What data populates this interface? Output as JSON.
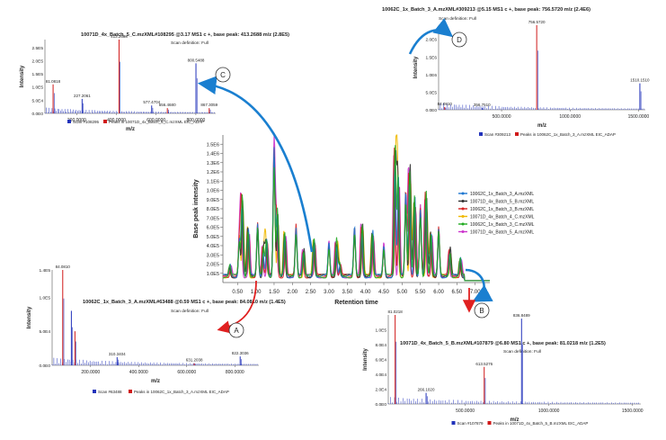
{
  "chart_data": {
    "type": "composite",
    "main": {
      "type": "line",
      "xlabel": "Retention time",
      "ylabel": "Base peak intensity",
      "xlim": [
        0.1,
        7.4
      ],
      "ylim": [
        0,
        1600000.0
      ],
      "xticks": [
        "0.50",
        "1.00",
        "1.50",
        "2.00",
        "2.50",
        "3.00",
        "3.50",
        "4.00",
        "4.50",
        "5.00",
        "5.50",
        "6.00",
        "6.50",
        "7.00"
      ],
      "yticks": [
        "1.0E5",
        "2.0E5",
        "3.0E5",
        "4.0E5",
        "5.0E5",
        "6.0E5",
        "7.0E5",
        "8.0E5",
        "9.0E5",
        "1.0E6",
        "1.1E6",
        "1.2E6",
        "1.3E6",
        "1.4E6",
        "1.5E6"
      ],
      "legend": [
        {
          "name": "10062C_1x_Batch_3_A.mzXML",
          "color": "#1f77d0"
        },
        {
          "name": "10071D_4x_Batch_5_B.mzXML",
          "color": "#303030"
        },
        {
          "name": "10062C_1x_Batch_3_B.mzXML",
          "color": "#d62020"
        },
        {
          "name": "10071D_4x_Batch_4_C.mzXML",
          "color": "#f0b800"
        },
        {
          "name": "10062C_1x_Batch_3_C.mzXML",
          "color": "#22aa22"
        },
        {
          "name": "10071D_4x_Batch_5_A.mzXML",
          "color": "#cc33cc"
        }
      ],
      "series_peaks": [
        [
          0.3,
          0.12
        ],
        [
          0.55,
          0.45
        ],
        [
          0.62,
          0.9
        ],
        [
          0.8,
          0.55
        ],
        [
          1.05,
          0.6
        ],
        [
          1.2,
          0.35
        ],
        [
          1.3,
          0.42
        ],
        [
          1.5,
          1.5
        ],
        [
          1.58,
          0.75
        ],
        [
          1.8,
          0.5
        ],
        [
          2.1,
          0.55
        ],
        [
          2.3,
          0.3
        ],
        [
          2.6,
          0.42
        ],
        [
          3.0,
          0.38
        ],
        [
          3.2,
          0.4
        ],
        [
          3.3,
          0.15
        ],
        [
          3.7,
          0.55
        ],
        [
          3.9,
          0.6
        ],
        [
          4.2,
          0.5
        ],
        [
          4.5,
          0.35
        ],
        [
          4.8,
          1.45
        ],
        [
          4.9,
          1.2
        ],
        [
          5.1,
          0.95
        ],
        [
          5.2,
          1.25
        ],
        [
          5.35,
          0.9
        ],
        [
          5.5,
          0.8
        ],
        [
          5.65,
          0.95
        ],
        [
          5.8,
          0.5
        ],
        [
          6.0,
          0.55
        ],
        [
          6.3,
          0.3
        ],
        [
          6.6,
          0.2
        ]
      ]
    },
    "insets": [
      {
        "id": "A",
        "label": "A",
        "title": "10062C_1x_Batch_3_A.mzXML#63488 @0.59 MS1 c +, base peak: 84.0810 m/z (1.4E5)",
        "subtitle": "Scan definition: Full",
        "xlabel": "m/z",
        "ylabel": "Intensity",
        "xticks": [
          "200.0000",
          "400.0000",
          "600.0000",
          "800.0000"
        ],
        "yticks": [
          "0.0E0",
          "5.0E4",
          "1.0E5",
          "1.4E5"
        ],
        "xlim": [
          40,
          900
        ],
        "peaks": [
          [
            84.081,
            140000.0
          ],
          [
            120,
            80000.0
          ],
          [
            135,
            50000.0
          ],
          [
            310.3404,
            12000.0
          ],
          [
            631.2038,
            3000.0
          ],
          [
            822.3036,
            13000.0
          ]
        ],
        "peak_labels": [
          "84.0810",
          "310.3404",
          "631.2038",
          "822.3036"
        ],
        "legend": [
          "Scan #63488",
          "Peaks in 10062C_1x_Batch_3_A.mzXML EIC_ADAP"
        ]
      },
      {
        "id": "B",
        "label": "B",
        "title": "10071D_4x_Batch_5_B.mzXML#107879 @6.80 MS1 c +, base peak: 81.0218 m/z (1.2E5)",
        "subtitle": "Scan definition: Full",
        "xlabel": "m/z",
        "ylabel": "Intensity",
        "xticks": [
          "500.0000",
          "1000.0000",
          "1500.0000"
        ],
        "yticks": [
          "0.0E0",
          "2.0E4",
          "4.0E4",
          "6.0E4",
          "8.0E4",
          "1.0E5"
        ],
        "xlim": [
          40,
          1550
        ],
        "peaks": [
          [
            81.0218,
            120000.0
          ],
          [
            266.102,
            15000.0
          ],
          [
            613.5276,
            50000.0
          ],
          [
            836.8489,
            115000.0
          ]
        ],
        "peak_labels": [
          "81.0218",
          "266.1020",
          "613.5276",
          "836.8489"
        ],
        "legend": [
          "Scan #107879",
          "Peaks in 10071D_4x_Batch_5_B.mzXML EIC_ADAP"
        ]
      },
      {
        "id": "C",
        "label": "C",
        "title": "10071D_4x_Batch_5_C.mzXML#108295 @3.17 MS1 c +, base peak: 413.2688 m/z (2.8E5)",
        "subtitle": "Scan definition: Full",
        "xlabel": "m/z",
        "ylabel": "Intensity",
        "xticks": [
          "200.0000",
          "400.0000",
          "600.0000",
          "800.0000"
        ],
        "yticks": [
          "0.0E0",
          "5.0E4",
          "1.0E5",
          "1.5E5",
          "2.0E5",
          "2.5E5"
        ],
        "xlim": [
          40,
          900
        ],
        "peaks": [
          [
            81.0818,
            110000.0
          ],
          [
            227.2061,
            55000.0
          ],
          [
            413.2688,
            280000.0
          ],
          [
            577.4704,
            30000.0
          ],
          [
            656.468,
            20000.0
          ],
          [
            800.5488,
            190000.0
          ],
          [
            867.3059,
            20000.0
          ]
        ],
        "peak_labels": [
          "81.0818",
          "227.2061",
          "413.2688",
          "577.4704",
          "656.4680",
          "800.5488",
          "867.3059"
        ],
        "legend": [
          "Scan #108295",
          "Peaks in 10071D_4x_Batch_5_C.mzXML EIC_ADAP"
        ]
      },
      {
        "id": "D",
        "label": "D",
        "title": "10062C_1x_Batch_3_A.mzXML#309213 @5.15 MS1 c +, base peak: 756.5720 m/z (2.4E6)",
        "subtitle": "Scan definition: Full",
        "xlabel": "m/z",
        "ylabel": "Intensity",
        "xticks": [
          "500.0000",
          "1000.0000",
          "1500.0000"
        ],
        "yticks": [
          "0.0E0",
          "5.0E5",
          "1.0E6",
          "1.5E6",
          "2.0E6"
        ],
        "xlim": [
          40,
          1550
        ],
        "peaks": [
          [
            84.081,
            80000.0
          ],
          [
            356.751,
            50000.0
          ],
          [
            756.572,
            2400000.0
          ],
          [
            1510.151,
            750000.0
          ]
        ],
        "peak_labels": [
          "84.0810",
          "356.7510",
          "756.5720",
          "1510.1510"
        ],
        "legend": [
          "Scan #309213",
          "Peaks in 10062C_1x_Batch_3_A.mzXML EIC_ADAP"
        ]
      }
    ],
    "arrows": [
      {
        "from": "main-peak-0.59",
        "to": "A"
      },
      {
        "from": "main-peak-6.80",
        "to": "B"
      },
      {
        "from": "main-peak-3.17",
        "to": "C"
      },
      {
        "from": "main-peak-5.15",
        "to": "D"
      }
    ]
  }
}
